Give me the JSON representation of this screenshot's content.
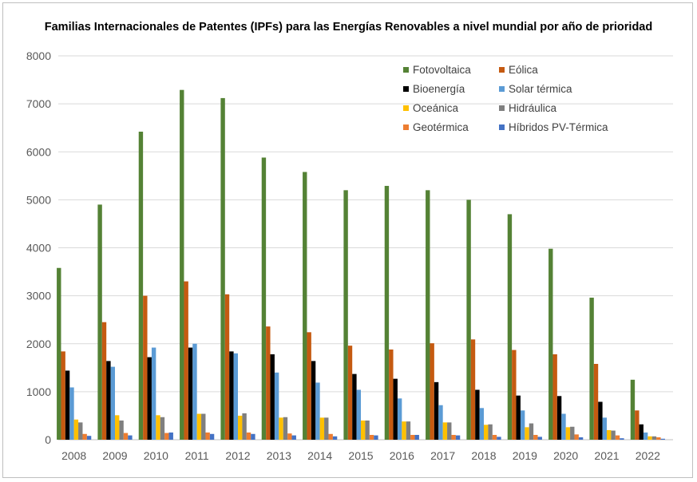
{
  "chart_data": {
    "type": "bar",
    "title": "Familias Internacionales de Patentes (IPFs) para las Energías Renovables a nivel mundial por año de prioridad",
    "xlabel": "",
    "ylabel": "",
    "ylim": [
      0,
      8000
    ],
    "yticks": [
      "0",
      "1000",
      "2000",
      "3000",
      "4000",
      "5000",
      "6000",
      "7000",
      "8000"
    ],
    "grid": true,
    "legend_position": "top-right",
    "categories": [
      "2008",
      "2009",
      "2010",
      "2011",
      "2012",
      "2013",
      "2014",
      "2015",
      "2016",
      "2017",
      "2018",
      "2019",
      "2020",
      "2021",
      "2022"
    ],
    "series": [
      {
        "name": "Fotovoltaica",
        "color": "#548235",
        "values": [
          3580,
          4900,
          6420,
          7290,
          7120,
          5880,
          5580,
          5200,
          5290,
          5200,
          5000,
          4700,
          3980,
          2960,
          1250
        ]
      },
      {
        "name": "Eólica",
        "color": "#c55a11",
        "values": [
          1840,
          2450,
          3000,
          3300,
          3030,
          2360,
          2240,
          1960,
          1880,
          2010,
          2090,
          1870,
          1780,
          1580,
          610
        ]
      },
      {
        "name": "Bioenergía",
        "color": "#000000",
        "values": [
          1440,
          1640,
          1720,
          1920,
          1840,
          1780,
          1640,
          1370,
          1270,
          1200,
          1040,
          920,
          910,
          790,
          320
        ]
      },
      {
        "name": "Solar térmica",
        "color": "#5b9bd5",
        "values": [
          1090,
          1520,
          1920,
          2000,
          1800,
          1400,
          1190,
          1040,
          860,
          720,
          660,
          610,
          540,
          460,
          150
        ]
      },
      {
        "name": "Oceánica",
        "color": "#ffc000",
        "values": [
          420,
          510,
          510,
          540,
          500,
          460,
          460,
          400,
          380,
          360,
          310,
          260,
          260,
          200,
          70
        ]
      },
      {
        "name": "Hidráulica",
        "color": "#7f7f7f",
        "values": [
          360,
          400,
          470,
          540,
          550,
          470,
          460,
          400,
          380,
          360,
          320,
          340,
          270,
          190,
          70
        ]
      },
      {
        "name": "Geotérmica",
        "color": "#ed7d31",
        "values": [
          120,
          140,
          140,
          150,
          150,
          130,
          120,
          100,
          100,
          100,
          100,
          100,
          110,
          90,
          50
        ]
      },
      {
        "name": "Híbridos PV-Térmica",
        "color": "#4472c4",
        "values": [
          80,
          90,
          150,
          120,
          120,
          90,
          70,
          90,
          100,
          90,
          60,
          60,
          50,
          30,
          20
        ]
      }
    ]
  }
}
